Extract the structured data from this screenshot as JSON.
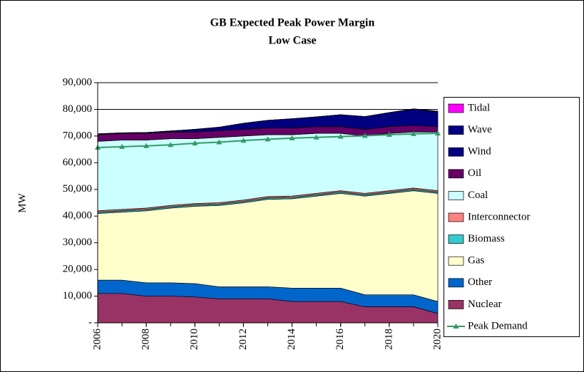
{
  "chart_data": {
    "type": "area",
    "title": "GB Expected Peak Power Margin",
    "subtitle": "Low Case",
    "y_label": "MW",
    "x": [
      2006,
      2007,
      2008,
      2009,
      2010,
      2011,
      2012,
      2013,
      2014,
      2015,
      2016,
      2017,
      2018,
      2019,
      2020
    ],
    "xlim": [
      2006,
      2020
    ],
    "xticks": [
      2006,
      2008,
      2010,
      2012,
      2014,
      2016,
      2018,
      2020
    ],
    "ylim": [
      0,
      90000
    ],
    "yticks": [
      {
        "value": 0,
        "label": "-"
      },
      {
        "value": 10000,
        "label": "10,000"
      },
      {
        "value": 20000,
        "label": "20,000"
      },
      {
        "value": 30000,
        "label": "30,000"
      },
      {
        "value": 40000,
        "label": "40,000"
      },
      {
        "value": 50000,
        "label": "50,000"
      },
      {
        "value": 60000,
        "label": "60,000"
      },
      {
        "value": 70000,
        "label": "70,000"
      },
      {
        "value": 80000,
        "label": "80,000"
      },
      {
        "value": 90000,
        "label": "90,000"
      }
    ],
    "stacked": true,
    "series": [
      {
        "name": "Nuclear",
        "color": "#993366",
        "values": [
          11000,
          11000,
          10000,
          10000,
          9700,
          9000,
          9000,
          9000,
          8000,
          8000,
          8000,
          6000,
          6000,
          6000,
          3500
        ]
      },
      {
        "name": "Other",
        "color": "#0066cc",
        "values": [
          5000,
          5000,
          5000,
          5000,
          5000,
          4500,
          4500,
          4500,
          5000,
          5000,
          5000,
          4500,
          4500,
          4500,
          4500
        ]
      },
      {
        "name": "Gas",
        "color": "#ffffcc",
        "values": [
          25000,
          25500,
          27000,
          28000,
          29000,
          30500,
          31500,
          32800,
          33500,
          34500,
          35500,
          37000,
          38000,
          39000,
          40500
        ]
      },
      {
        "name": "Biomass",
        "color": "#33cccc",
        "values": [
          500,
          500,
          500,
          500,
          500,
          500,
          500,
          500,
          500,
          500,
          500,
          500,
          500,
          500,
          500
        ]
      },
      {
        "name": "Interconnector",
        "color": "#ff8080",
        "values": [
          500,
          500,
          500,
          500,
          500,
          500,
          500,
          500,
          500,
          500,
          500,
          500,
          500,
          500,
          500
        ]
      },
      {
        "name": "Coal",
        "color": "#ccffff",
        "values": [
          26000,
          26000,
          25500,
          25000,
          24300,
          24500,
          24000,
          23200,
          23000,
          22500,
          21500,
          21500,
          21500,
          21000,
          22000
        ]
      },
      {
        "name": "Oil",
        "color": "#660066",
        "values": [
          2500,
          2500,
          2500,
          2500,
          2500,
          2500,
          2500,
          2500,
          2500,
          2500,
          2500,
          2500,
          2500,
          2500,
          2000
        ]
      },
      {
        "name": "Wind",
        "color": "#000080",
        "values": [
          300,
          200,
          300,
          400,
          1000,
          1300,
          2300,
          2900,
          3500,
          3700,
          4500,
          4800,
          5300,
          6000,
          5500
        ]
      },
      {
        "name": "Wave",
        "color": "#000080",
        "values": [
          0,
          0,
          0,
          0,
          0,
          0,
          0,
          0,
          0,
          0,
          0,
          0,
          0,
          200,
          300
        ]
      },
      {
        "name": "Tidal",
        "color": "#ff00ff",
        "values": [
          0,
          0,
          0,
          0,
          0,
          0,
          0,
          0,
          0,
          0,
          0,
          0,
          0,
          0,
          0
        ]
      }
    ],
    "line_series": {
      "name": "Peak Demand",
      "color": "#339966",
      "values": [
        65700,
        66000,
        66300,
        66700,
        67300,
        67700,
        68300,
        68800,
        69200,
        69500,
        69800,
        70100,
        70500,
        70800,
        71000
      ]
    }
  }
}
